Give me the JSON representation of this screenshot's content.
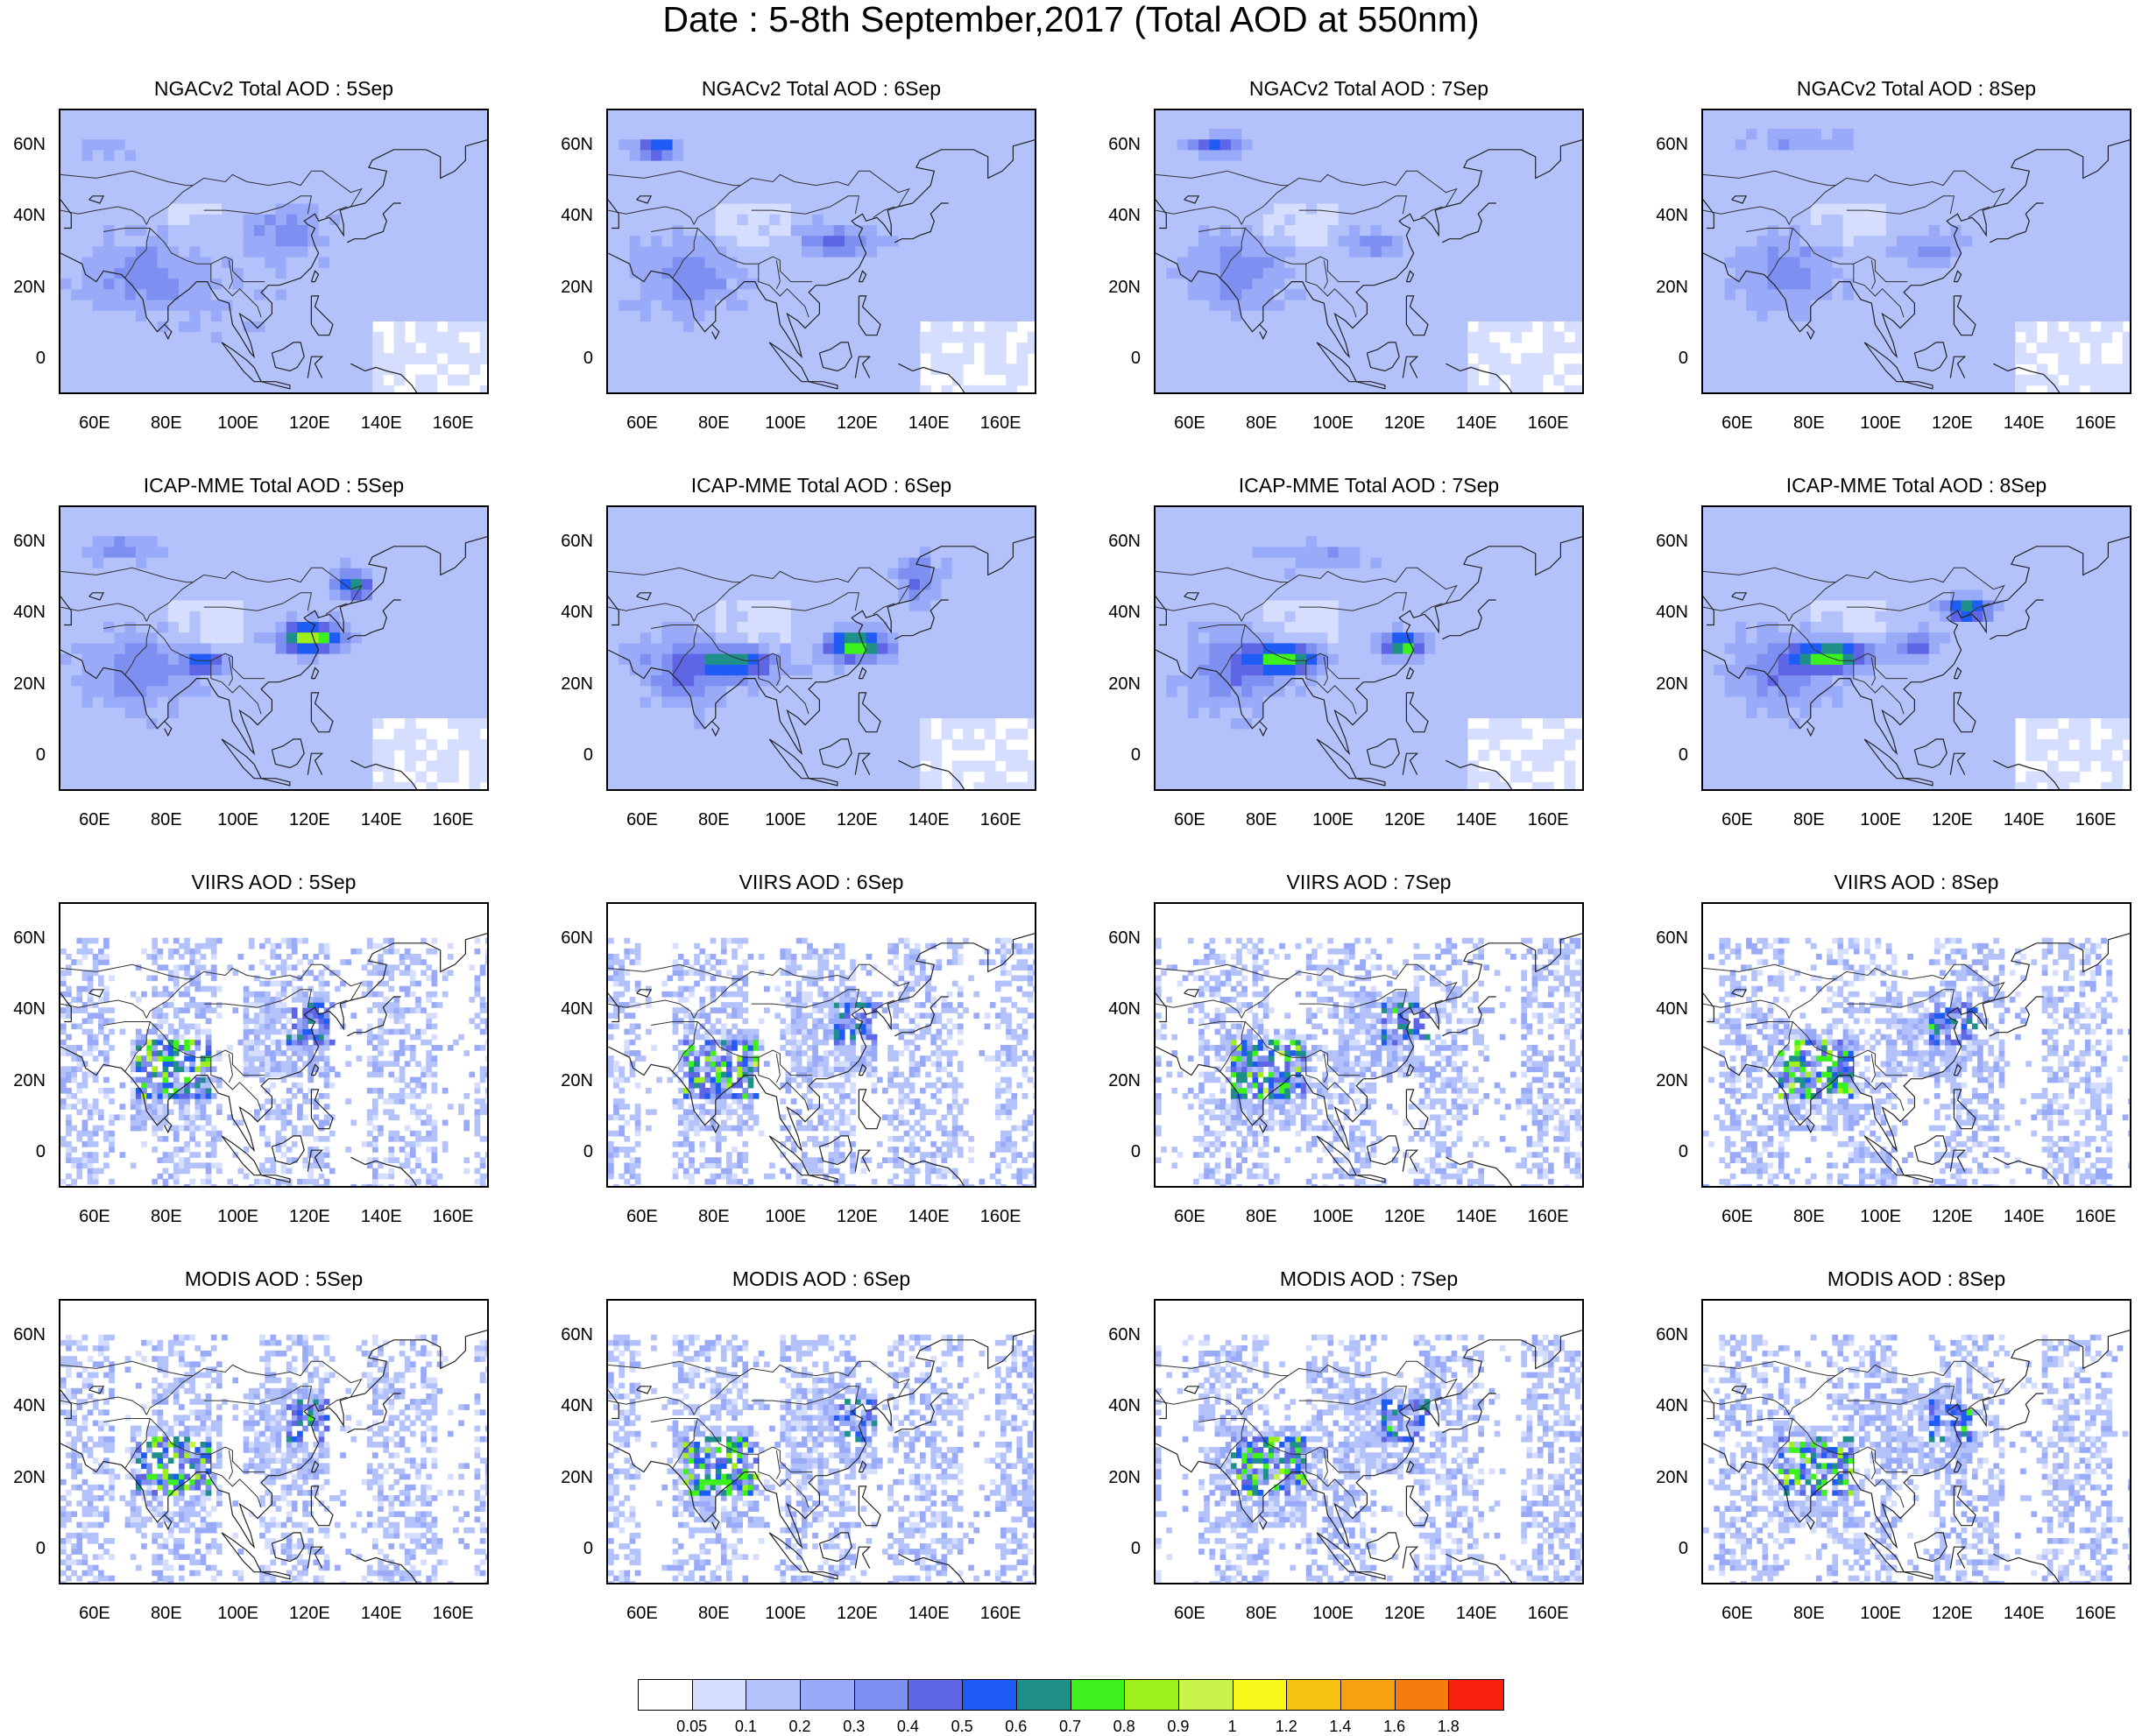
{
  "title": "Date : 5-8th September,2017 (Total AOD at 550nm)",
  "lat_labels": [
    "60N",
    "40N",
    "20N",
    "0"
  ],
  "lon_labels": [
    "60E",
    "80E",
    "100E",
    "120E",
    "140E",
    "160E"
  ],
  "map_extent": {
    "lon": [
      50,
      170
    ],
    "lat": [
      -10,
      70
    ]
  },
  "panels": [
    {
      "title": "NGACv2 Total AOD : 5Sep",
      "source": "NGACv2",
      "day": 5
    },
    {
      "title": "NGACv2 Total AOD : 6Sep",
      "source": "NGACv2",
      "day": 6
    },
    {
      "title": "NGACv2 Total AOD : 7Sep",
      "source": "NGACv2",
      "day": 7
    },
    {
      "title": "NGACv2 Total AOD : 8Sep",
      "source": "NGACv2",
      "day": 8
    },
    {
      "title": "ICAP-MME Total AOD : 5Sep",
      "source": "ICAP-MME",
      "day": 5
    },
    {
      "title": "ICAP-MME Total AOD : 6Sep",
      "source": "ICAP-MME",
      "day": 6
    },
    {
      "title": "ICAP-MME Total AOD : 7Sep",
      "source": "ICAP-MME",
      "day": 7
    },
    {
      "title": "ICAP-MME Total AOD : 8Sep",
      "source": "ICAP-MME",
      "day": 8
    },
    {
      "title": "VIIRS AOD : 5Sep",
      "source": "VIIRS",
      "day": 5
    },
    {
      "title": "VIIRS AOD : 6Sep",
      "source": "VIIRS",
      "day": 6
    },
    {
      "title": "VIIRS AOD : 7Sep",
      "source": "VIIRS",
      "day": 7
    },
    {
      "title": "VIIRS AOD : 8Sep",
      "source": "VIIRS",
      "day": 8
    },
    {
      "title": "MODIS AOD : 5Sep",
      "source": "MODIS",
      "day": 5
    },
    {
      "title": "MODIS AOD : 6Sep",
      "source": "MODIS",
      "day": 6
    },
    {
      "title": "MODIS AOD : 7Sep",
      "source": "MODIS",
      "day": 7
    },
    {
      "title": "MODIS AOD : 8Sep",
      "source": "MODIS",
      "day": 8
    }
  ],
  "colorbar": {
    "labels": [
      "0.05",
      "0.1",
      "0.2",
      "0.3",
      "0.4",
      "0.5",
      "0.6",
      "0.7",
      "0.8",
      "0.9",
      "1",
      "1.2",
      "1.4",
      "1.6",
      "1.8"
    ],
    "colors": [
      "#ffffff",
      "#d6deff",
      "#b3c2fb",
      "#98aaf8",
      "#7e8ff2",
      "#5f66e6",
      "#1f5cf5",
      "#1f8f8a",
      "#3df21c",
      "#9ef01c",
      "#c9f54a",
      "#f7f719",
      "#f7c310",
      "#f7a010",
      "#f77c10",
      "#f7200f"
    ]
  }
}
